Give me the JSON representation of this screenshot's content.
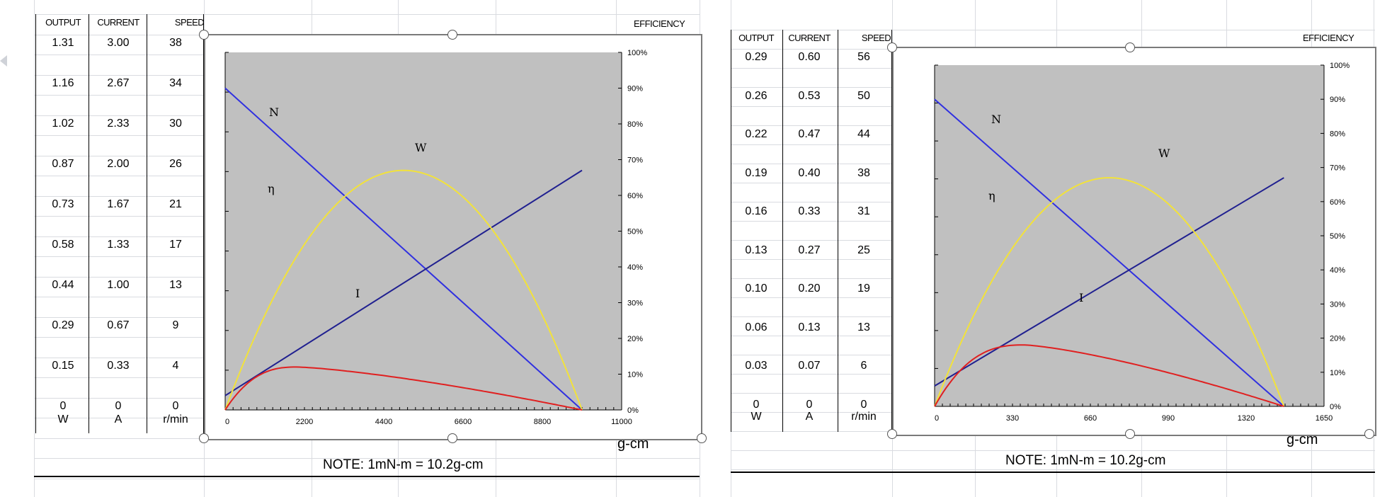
{
  "chart_data": [
    {
      "type": "line",
      "title": "",
      "xlabel": "g-cm",
      "ylabel_right": "EFFICIENCY",
      "xlim": [
        0,
        11000
      ],
      "ylim_right": [
        0,
        100
      ],
      "x_ticks": [
        "0",
        "2200",
        "4400",
        "6600",
        "8800",
        "11000"
      ],
      "y_ticks_right": [
        "0%",
        "10%",
        "20%",
        "30%",
        "40%",
        "50%",
        "60%",
        "70%",
        "80%",
        "90%",
        "100%"
      ],
      "note": "NOTE: 1mN-m = 10.2g-cm",
      "table": {
        "headers": [
          "OUTPUT",
          "CURRENT",
          "SPEED"
        ],
        "units": [
          "W",
          "A",
          "r/min"
        ],
        "rows": [
          [
            "1.31",
            "3.00",
            "38"
          ],
          [
            "1.16",
            "2.67",
            "34"
          ],
          [
            "1.02",
            "2.33",
            "30"
          ],
          [
            "0.87",
            "2.00",
            "26"
          ],
          [
            "0.73",
            "1.67",
            "21"
          ],
          [
            "0.58",
            "1.33",
            "17"
          ],
          [
            "0.44",
            "1.00",
            "13"
          ],
          [
            "0.29",
            "0.67",
            "9"
          ],
          [
            "0.15",
            "0.33",
            "4"
          ],
          [
            "0",
            "0",
            "0"
          ]
        ]
      },
      "series": [
        {
          "name": "N",
          "color": "#3030e0",
          "x": [
            0,
            9900
          ],
          "y_scale_fraction": [
            0.9,
            0.0
          ]
        },
        {
          "name": "I",
          "color": "#202090",
          "x": [
            0,
            9900
          ],
          "y_scale_fraction": [
            0.04,
            0.67
          ]
        },
        {
          "name": "W",
          "color": "#f2e23a",
          "x_peak": 5000,
          "peak_fraction": 0.67,
          "x_end": 9900
        },
        {
          "name": "η",
          "color": "#e02020",
          "x_peak": 2000,
          "peak_fraction": 0.12,
          "x_end": 9900
        }
      ]
    },
    {
      "type": "line",
      "title": "",
      "xlabel": "g-cm",
      "ylabel_right": "EFFICIENCY",
      "xlim": [
        0,
        1650
      ],
      "ylim_right": [
        0,
        100
      ],
      "x_ticks": [
        "0",
        "330",
        "660",
        "990",
        "1320",
        "1650"
      ],
      "y_ticks_right": [
        "0%",
        "10%",
        "20%",
        "30%",
        "40%",
        "50%",
        "60%",
        "70%",
        "80%",
        "90%",
        "100%"
      ],
      "note": "NOTE: 1mN-m = 10.2g-cm",
      "table": {
        "headers": [
          "OUTPUT",
          "CURRENT",
          "SPEED"
        ],
        "units": [
          "W",
          "A",
          "r/min"
        ],
        "rows": [
          [
            "0.29",
            "0.60",
            "56"
          ],
          [
            "0.26",
            "0.53",
            "50"
          ],
          [
            "0.22",
            "0.47",
            "44"
          ],
          [
            "0.19",
            "0.40",
            "38"
          ],
          [
            "0.16",
            "0.33",
            "31"
          ],
          [
            "0.13",
            "0.27",
            "25"
          ],
          [
            "0.10",
            "0.20",
            "19"
          ],
          [
            "0.06",
            "0.13",
            "13"
          ],
          [
            "0.03",
            "0.07",
            "6"
          ],
          [
            "0",
            "0",
            "0"
          ]
        ]
      },
      "series": [
        {
          "name": "N",
          "color": "#3030e0",
          "x": [
            0,
            1480
          ],
          "y_scale_fraction": [
            0.9,
            0.0
          ]
        },
        {
          "name": "I",
          "color": "#202090",
          "x": [
            0,
            1480
          ],
          "y_scale_fraction": [
            0.06,
            0.67
          ]
        },
        {
          "name": "W",
          "color": "#f2e23a",
          "x_peak": 740,
          "peak_fraction": 0.67,
          "x_end": 1480
        },
        {
          "name": "η",
          "color": "#e02020",
          "x_peak": 380,
          "peak_fraction": 0.18,
          "x_end": 1480
        }
      ]
    }
  ]
}
